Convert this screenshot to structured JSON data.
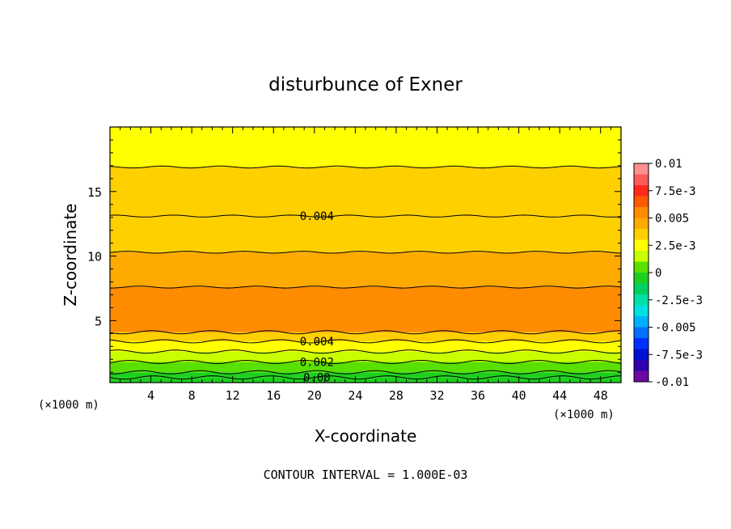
{
  "chart_data": {
    "type": "heatmap",
    "title": "disturbunce of Exner",
    "xlabel": "X-coordinate",
    "ylabel": "Z-coordinate",
    "x_unit_label_left": "(×1000 m)",
    "x_unit_label_right": "(×1000 m)",
    "footer": "CONTOUR INTERVAL = 1.000E-03",
    "xlim": [
      0,
      50
    ],
    "ylim": [
      0.2,
      20
    ],
    "x_ticks": [
      4,
      8,
      12,
      16,
      20,
      24,
      28,
      32,
      36,
      40,
      44,
      48
    ],
    "y_ticks": [
      5,
      10,
      15
    ],
    "contour_interval": 0.001,
    "contour_labels": [
      {
        "text": "0.004",
        "x": 18.5,
        "z": 13.1
      },
      {
        "text": "0.004",
        "x": 18.5,
        "z": 3.4
      },
      {
        "text": "0.002",
        "x": 18.5,
        "z": 1.8
      },
      {
        "text": "0.00",
        "x": 18.5,
        "z": 0.6
      }
    ],
    "level_bands": [
      {
        "z_bottom": 0.2,
        "z_top": 0.6,
        "value": -0.001
      },
      {
        "z_bottom": 0.6,
        "z_top": 1.0,
        "value": 0.0
      },
      {
        "z_bottom": 1.0,
        "z_top": 1.8,
        "value": 0.001
      },
      {
        "z_bottom": 1.8,
        "z_top": 2.6,
        "value": 0.002
      },
      {
        "z_bottom": 2.6,
        "z_top": 3.4,
        "value": 0.003
      },
      {
        "z_bottom": 3.4,
        "z_top": 4.1,
        "value": 0.004
      },
      {
        "z_bottom": 4.1,
        "z_top": 7.6,
        "value": 0.0055
      },
      {
        "z_bottom": 7.6,
        "z_top": 10.3,
        "value": 0.0045
      },
      {
        "z_bottom": 10.3,
        "z_top": 13.1,
        "value": 0.004
      },
      {
        "z_bottom": 13.1,
        "z_top": 16.9,
        "value": 0.0035
      },
      {
        "z_bottom": 16.9,
        "z_top": 20.0,
        "value": 0.003
      }
    ],
    "colorbar": {
      "tick_labels": [
        "0.01",
        "7.5e-3",
        "0.005",
        "2.5e-3",
        "0",
        "-2.5e-3",
        "-0.005",
        "-7.5e-3",
        "-0.01"
      ],
      "tick_values": [
        0.01,
        0.0075,
        0.005,
        0.0025,
        0,
        -0.0025,
        -0.005,
        -0.0075,
        -0.01
      ],
      "colors_top_to_bottom": [
        "#ff8f8f",
        "#ff5a5a",
        "#ff2a1a",
        "#ff5a00",
        "#ff8c00",
        "#ffaa00",
        "#ffd000",
        "#ffff00",
        "#c8ff00",
        "#5ae000",
        "#1ed01e",
        "#00d060",
        "#00e0a8",
        "#00e0e0",
        "#00b0ff",
        "#0070ff",
        "#0030ff",
        "#0010d0",
        "#3000b0",
        "#6a0aa0"
      ]
    }
  }
}
